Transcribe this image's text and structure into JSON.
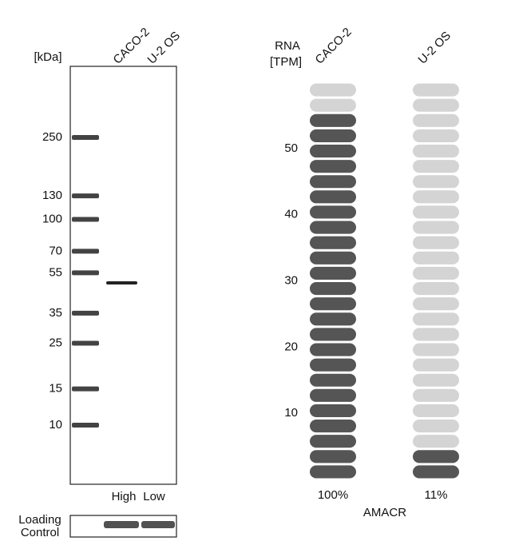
{
  "blot": {
    "unit_label": "[kDa]",
    "lanes": [
      "CACO-2",
      "U-2 OS"
    ],
    "markers": [
      250,
      130,
      100,
      70,
      55,
      35,
      25,
      15,
      10
    ],
    "lane_levels": [
      "High",
      "Low"
    ],
    "loading_control": [
      "Loading",
      "Control"
    ]
  },
  "rna": {
    "axis_label": [
      "RNA",
      "[TPM]"
    ],
    "ylim": [
      0,
      60
    ],
    "yticks": [
      10,
      20,
      30,
      40,
      50
    ],
    "pill_count": 26,
    "gene": "AMACR",
    "samples": [
      {
        "name": "CACO-2",
        "value": 56,
        "percent": "100%"
      },
      {
        "name": "U-2 OS",
        "value": 6,
        "percent": "11%"
      }
    ]
  }
}
